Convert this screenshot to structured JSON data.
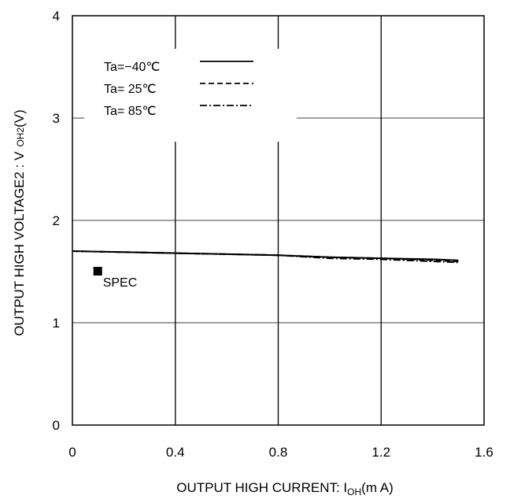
{
  "chart_data": {
    "type": "line",
    "xlabel": {
      "text": "OUTPUT HIGH CURRENT: I",
      "sub": "OH",
      "tail": "(m A)"
    },
    "ylabel": {
      "text": "OUTPUT HIGH VOLTAGE2 : V",
      "sub": "OH2",
      "tail": "(V)"
    },
    "xlim": [
      0,
      1.6
    ],
    "ylim": [
      0,
      4
    ],
    "xticks": [
      0,
      0.4,
      0.8,
      1.2,
      1.6
    ],
    "xtick_labels": [
      "0",
      "0.4",
      "0.8",
      "1.2",
      "1.6"
    ],
    "yticks": [
      0,
      1,
      2,
      3,
      4
    ],
    "ytick_labels": [
      "0",
      "1",
      "2",
      "3",
      "4"
    ],
    "grid": true,
    "legend_position": "top-left",
    "series": [
      {
        "name": "Ta=−40℃",
        "dash": "solid",
        "x": [
          0,
          0.2,
          0.4,
          0.6,
          0.8,
          1.0,
          1.2,
          1.4,
          1.5
        ],
        "y": [
          1.7,
          1.69,
          1.68,
          1.67,
          1.66,
          1.64,
          1.63,
          1.62,
          1.61
        ]
      },
      {
        "name": "Ta= 25℃",
        "dash": "dashed",
        "x": [
          0,
          0.2,
          0.4,
          0.6,
          0.8,
          1.0,
          1.2,
          1.4,
          1.5
        ],
        "y": [
          1.7,
          1.69,
          1.68,
          1.67,
          1.66,
          1.64,
          1.63,
          1.61,
          1.6
        ]
      },
      {
        "name": "Ta= 85℃",
        "dash": "dashdot",
        "x": [
          0,
          0.2,
          0.4,
          0.6,
          0.8,
          1.0,
          1.2,
          1.4,
          1.5
        ],
        "y": [
          1.7,
          1.69,
          1.68,
          1.67,
          1.66,
          1.63,
          1.62,
          1.6,
          1.59
        ]
      }
    ],
    "annotations": [
      {
        "label": "SPEC",
        "x": 0.1,
        "y": 1.5
      }
    ]
  }
}
